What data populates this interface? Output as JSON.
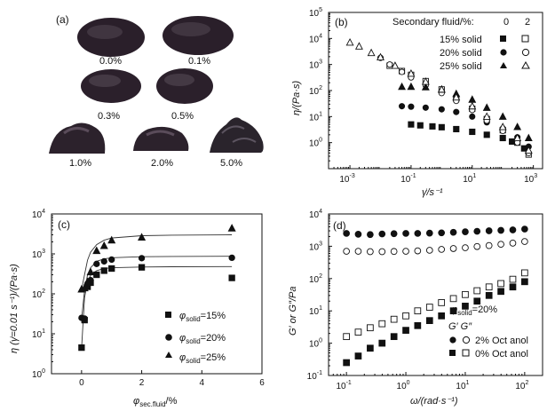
{
  "panel_a": {
    "label": "(a)",
    "samples": [
      "0.0%",
      "0.1%",
      "0.3%",
      "0.5%",
      "1.0%",
      "2.0%",
      "5.0%"
    ]
  },
  "chart_data": [
    {
      "panel": "(b)",
      "type": "scatter",
      "xscale": "log",
      "yscale": "log",
      "xlim": [
        0.0002,
        2000
      ],
      "ylim": [
        0.1,
        100000
      ],
      "xticks": [
        0.001,
        0.1,
        10,
        1000
      ],
      "xtick_labels": [
        "10",
        "10",
        "10",
        "10"
      ],
      "xtick_exps": [
        "-3",
        "-1",
        "1",
        "3"
      ],
      "yticks": [
        1,
        10,
        100,
        1000,
        10000,
        100000
      ],
      "ytick_labels": [
        "10",
        "10",
        "10",
        "10",
        "10",
        "10"
      ],
      "ytick_exps": [
        "0",
        "1",
        "2",
        "3",
        "4",
        "5"
      ],
      "xlabel": "γ̇/s⁻¹",
      "ylabel": "η/(Pa·s)",
      "legend_title": "Secondary fluid/%:",
      "legend_cols": [
        "0",
        "2"
      ],
      "legend_loc": "top-right",
      "series": [
        {
          "name": "15% solid",
          "marker": "square",
          "fill": "filled",
          "points": [
            [
              0.1,
              5
            ],
            [
              0.2,
              4.6
            ],
            [
              0.5,
              4.2
            ],
            [
              1,
              3.9
            ],
            [
              3,
              3.3
            ],
            [
              10,
              2.6
            ],
            [
              30,
              2.0
            ],
            [
              100,
              1.5
            ],
            [
              200,
              1.1
            ],
            [
              500,
              0.6
            ]
          ]
        },
        {
          "name": "15% solid",
          "marker": "square",
          "fill": "open",
          "points": [
            [
              0.02,
              900
            ],
            [
              0.05,
              560
            ],
            [
              0.1,
              400
            ],
            [
              0.3,
              230
            ],
            [
              1,
              110
            ],
            [
              3,
              50
            ],
            [
              10,
              20
            ],
            [
              30,
              8
            ],
            [
              100,
              3
            ],
            [
              300,
              1.0
            ],
            [
              700,
              0.35
            ]
          ]
        },
        {
          "name": "20% solid",
          "marker": "circle",
          "fill": "filled",
          "points": [
            [
              0.05,
              25
            ],
            [
              0.1,
              24
            ],
            [
              0.3,
              22
            ],
            [
              1,
              19
            ],
            [
              3,
              15
            ],
            [
              10,
              10
            ],
            [
              30,
              6
            ],
            [
              100,
              3.5
            ],
            [
              300,
              1.6
            ],
            [
              700,
              0.7
            ]
          ]
        },
        {
          "name": "20% solid",
          "marker": "circle",
          "fill": "open",
          "points": [
            [
              0.01,
              1800
            ],
            [
              0.02,
              1000
            ],
            [
              0.05,
              520
            ],
            [
              0.1,
              320
            ],
            [
              0.3,
              160
            ],
            [
              1,
              80
            ],
            [
              3,
              40
            ],
            [
              10,
              18
            ],
            [
              30,
              7
            ],
            [
              100,
              2.8
            ],
            [
              300,
              1.0
            ],
            [
              700,
              0.4
            ]
          ]
        },
        {
          "name": "25% solid",
          "marker": "triangle",
          "fill": "filled",
          "points": [
            [
              0.05,
              140
            ],
            [
              0.1,
              140
            ],
            [
              0.3,
              135
            ],
            [
              1,
              110
            ],
            [
              3,
              75
            ],
            [
              10,
              45
            ],
            [
              30,
              22
            ],
            [
              100,
              10
            ],
            [
              300,
              4
            ],
            [
              700,
              1.5
            ]
          ]
        },
        {
          "name": "25% solid",
          "marker": "triangle",
          "fill": "open",
          "points": [
            [
              0.001,
              7000
            ],
            [
              0.002,
              5000
            ],
            [
              0.005,
              2800
            ],
            [
              0.01,
              1900
            ],
            [
              0.03,
              900
            ],
            [
              0.1,
              450
            ],
            [
              0.3,
              220
            ],
            [
              1,
              110
            ],
            [
              3,
              55
            ],
            [
              10,
              25
            ],
            [
              30,
              10
            ],
            [
              100,
              4
            ],
            [
              300,
              1.5
            ],
            [
              700,
              0.5
            ]
          ]
        }
      ]
    },
    {
      "panel": "(c)",
      "type": "scatter",
      "xscale": "linear",
      "yscale": "log",
      "xlim": [
        -1,
        6
      ],
      "ylim": [
        1,
        10000
      ],
      "xticks": [
        0,
        2,
        4,
        6
      ],
      "xtick_labels": [
        "0",
        "2",
        "4",
        "6"
      ],
      "yticks": [
        1,
        10,
        100,
        1000,
        10000
      ],
      "ytick_labels": [
        "10",
        "10",
        "10",
        "10",
        "10"
      ],
      "ytick_exps": [
        "0",
        "1",
        "2",
        "3",
        "4"
      ],
      "xlabel_main": "φ",
      "xlabel_sub": "sec.fluid",
      "xlabel_unit": "/%",
      "ylabel": "η (γ̇=0.01 s⁻¹)/(Pa·s)",
      "legend_loc": "bottom-right",
      "series": [
        {
          "name_main": "φ",
          "name_sub": "solid",
          "name_rest": "=15%",
          "marker": "square",
          "points": [
            [
              0,
              4.5
            ],
            [
              0.1,
              22
            ],
            [
              0.2,
              150
            ],
            [
              0.3,
              190
            ],
            [
              0.5,
              300
            ],
            [
              0.75,
              380
            ],
            [
              1,
              430
            ],
            [
              2,
              460
            ],
            [
              5,
              250
            ]
          ],
          "fit": [
            [
              0,
              4.5
            ],
            [
              0.1,
              80
            ],
            [
              0.2,
              200
            ],
            [
              0.3,
              290
            ],
            [
              0.5,
              380
            ],
            [
              0.75,
              430
            ],
            [
              1,
              450
            ],
            [
              2,
              470
            ],
            [
              3,
              475
            ],
            [
              5,
              480
            ]
          ]
        },
        {
          "name_main": "φ",
          "name_sub": "solid",
          "name_rest": "=20%",
          "marker": "circle",
          "points": [
            [
              0,
              25
            ],
            [
              0.1,
              24
            ],
            [
              0.2,
              180
            ],
            [
              0.3,
              220
            ],
            [
              0.5,
              560
            ],
            [
              0.75,
              650
            ],
            [
              1,
              720
            ],
            [
              2,
              780
            ],
            [
              5,
              800
            ]
          ],
          "fit": [
            [
              0,
              24
            ],
            [
              0.1,
              120
            ],
            [
              0.2,
              300
            ],
            [
              0.3,
              450
            ],
            [
              0.5,
              650
            ],
            [
              0.75,
              750
            ],
            [
              1,
              800
            ],
            [
              2,
              850
            ],
            [
              3,
              860
            ],
            [
              5,
              870
            ]
          ]
        },
        {
          "name_main": "φ",
          "name_sub": "solid",
          "name_rest": "=25%",
          "marker": "triangle",
          "points": [
            [
              0,
              130
            ],
            [
              0.1,
              140
            ],
            [
              0.2,
              200
            ],
            [
              0.3,
              350
            ],
            [
              0.5,
              1200
            ],
            [
              0.75,
              1600
            ],
            [
              1,
              2200
            ],
            [
              2,
              2600
            ],
            [
              5,
              4400
            ]
          ],
          "fit": [
            [
              0,
              130
            ],
            [
              0.1,
              300
            ],
            [
              0.2,
              700
            ],
            [
              0.3,
              1100
            ],
            [
              0.5,
              1700
            ],
            [
              0.75,
              2200
            ],
            [
              1,
              2500
            ],
            [
              2,
              2850
            ],
            [
              3,
              2950
            ],
            [
              5,
              3000
            ]
          ]
        }
      ]
    },
    {
      "panel": "(d)",
      "type": "scatter",
      "xscale": "log",
      "yscale": "log",
      "xlim": [
        0.05,
        200
      ],
      "ylim": [
        0.1,
        10000
      ],
      "xticks": [
        0.1,
        1,
        10,
        100
      ],
      "xtick_labels": [
        "10",
        "10",
        "10",
        "10"
      ],
      "xtick_exps": [
        "-1",
        "0",
        "1",
        "2"
      ],
      "yticks": [
        0.1,
        1,
        10,
        100,
        1000,
        10000
      ],
      "ytick_labels": [
        "10",
        "10",
        "10",
        "10",
        "10",
        "10"
      ],
      "ytick_exps": [
        "-1",
        "0",
        "1",
        "2",
        "3",
        "4"
      ],
      "xlabel": "ω/(rad·s⁻¹)",
      "ylabel": "G′ or G″/Pa",
      "annotation_main": "φ",
      "annotation_sub": "solid",
      "annotation_rest": "=20%",
      "legend_header": "G′  G″",
      "legend_rows": [
        "2% Oct anol",
        "0% Oct anol"
      ],
      "legend_loc": "bottom-right",
      "series": [
        {
          "name": "2% Octanol G′",
          "marker": "circle",
          "fill": "filled",
          "points": [
            [
              0.1,
              2500
            ],
            [
              0.158,
              2350
            ],
            [
              0.251,
              2300
            ],
            [
              0.398,
              2400
            ],
            [
              0.631,
              2450
            ],
            [
              1,
              2500
            ],
            [
              1.58,
              2500
            ],
            [
              2.51,
              2550
            ],
            [
              3.98,
              2600
            ],
            [
              6.31,
              2700
            ],
            [
              10,
              2800
            ],
            [
              15.8,
              2900
            ],
            [
              25.1,
              3000
            ],
            [
              39.8,
              3100
            ],
            [
              63.1,
              3200
            ],
            [
              100,
              3400
            ]
          ]
        },
        {
          "name": "2% Octanol G″",
          "marker": "circle",
          "fill": "open",
          "points": [
            [
              0.1,
              700
            ],
            [
              0.158,
              700
            ],
            [
              0.251,
              680
            ],
            [
              0.398,
              680
            ],
            [
              0.631,
              690
            ],
            [
              1,
              700
            ],
            [
              1.58,
              720
            ],
            [
              2.51,
              750
            ],
            [
              3.98,
              800
            ],
            [
              6.31,
              850
            ],
            [
              10,
              900
            ],
            [
              15.8,
              980
            ],
            [
              25.1,
              1050
            ],
            [
              39.8,
              1150
            ],
            [
              63.1,
              1250
            ],
            [
              100,
              1400
            ]
          ]
        },
        {
          "name": "0% Octanol G′",
          "marker": "square",
          "fill": "filled",
          "points": [
            [
              0.1,
              0.25
            ],
            [
              0.158,
              0.4
            ],
            [
              0.251,
              0.7
            ],
            [
              0.398,
              1.0
            ],
            [
              0.631,
              1.6
            ],
            [
              1,
              2.5
            ],
            [
              1.58,
              3.5
            ],
            [
              2.51,
              5
            ],
            [
              3.98,
              7
            ],
            [
              6.31,
              10
            ],
            [
              10,
              14
            ],
            [
              15.8,
              20
            ],
            [
              25.1,
              30
            ],
            [
              39.8,
              40
            ],
            [
              63.1,
              55
            ],
            [
              100,
              80
            ]
          ]
        },
        {
          "name": "0% Octanol G″",
          "marker": "square",
          "fill": "open",
          "points": [
            [
              0.1,
              1.6
            ],
            [
              0.158,
              2.2
            ],
            [
              0.251,
              3
            ],
            [
              0.398,
              4
            ],
            [
              0.631,
              5.5
            ],
            [
              1,
              7
            ],
            [
              1.58,
              10
            ],
            [
              2.51,
              13
            ],
            [
              3.98,
              18
            ],
            [
              6.31,
              24
            ],
            [
              10,
              32
            ],
            [
              15.8,
              42
            ],
            [
              25.1,
              55
            ],
            [
              39.8,
              70
            ],
            [
              63.1,
              95
            ],
            [
              100,
              150
            ]
          ]
        }
      ]
    }
  ]
}
